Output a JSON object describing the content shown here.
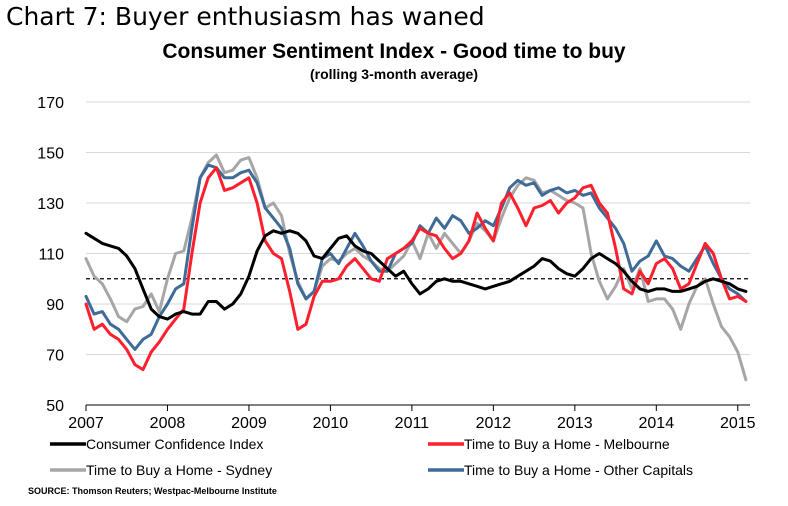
{
  "heading": "Chart 7: Buyer enthusiasm has waned",
  "source": "SOURCE: Thomson Reuters; Westpac-Melbourne Institute",
  "chart_data": {
    "type": "line",
    "title": "Consumer Sentiment Index - Good time to buy",
    "subtitle": "(rolling 3-month average)",
    "xlabel": "",
    "ylabel": "",
    "xlim": [
      2007.0,
      2015.15
    ],
    "ylim": [
      50,
      170
    ],
    "y_ticks": [
      50,
      70,
      90,
      110,
      130,
      150,
      170
    ],
    "x_ticks": [
      "2007",
      "2008",
      "2009",
      "2010",
      "2011",
      "2012",
      "2013",
      "2014",
      "2015"
    ],
    "reference_line": {
      "y": 100,
      "style": "dashed"
    },
    "grid": true,
    "legend_position": "bottom",
    "series": [
      {
        "name": "Consumer Confidence Index",
        "color": "#000000",
        "x": [
          2007.0,
          2007.1,
          2007.2,
          2007.3,
          2007.4,
          2007.5,
          2007.6,
          2007.7,
          2007.8,
          2007.9,
          2008.0,
          2008.1,
          2008.2,
          2008.3,
          2008.4,
          2008.5,
          2008.6,
          2008.7,
          2008.8,
          2008.9,
          2009.0,
          2009.1,
          2009.2,
          2009.3,
          2009.4,
          2009.5,
          2009.6,
          2009.7,
          2009.8,
          2009.9,
          2010.0,
          2010.1,
          2010.2,
          2010.3,
          2010.4,
          2010.5,
          2010.6,
          2010.7,
          2010.8,
          2010.9,
          2011.0,
          2011.1,
          2011.2,
          2011.3,
          2011.4,
          2011.5,
          2011.6,
          2011.7,
          2011.8,
          2011.9,
          2012.0,
          2012.1,
          2012.2,
          2012.3,
          2012.4,
          2012.5,
          2012.6,
          2012.7,
          2012.8,
          2012.9,
          2013.0,
          2013.1,
          2013.2,
          2013.3,
          2013.4,
          2013.5,
          2013.6,
          2013.7,
          2013.8,
          2013.9,
          2014.0,
          2014.1,
          2014.2,
          2014.3,
          2014.4,
          2014.5,
          2014.6,
          2014.7,
          2014.8,
          2014.9,
          2015.0,
          2015.1
        ],
        "y": [
          118,
          116,
          114,
          113,
          112,
          109,
          104,
          96,
          88,
          85,
          84,
          86,
          87,
          86,
          86,
          91,
          91,
          88,
          90,
          94,
          101,
          111,
          117,
          119,
          118,
          119,
          118,
          115,
          109,
          108,
          112,
          116,
          117,
          113,
          111,
          110,
          107,
          104,
          101,
          103,
          98,
          94,
          96,
          99,
          100,
          99,
          99,
          98,
          97,
          96,
          97,
          98,
          99,
          101,
          103,
          105,
          108,
          107,
          104,
          102,
          101,
          104,
          108,
          110,
          108,
          106,
          103,
          99,
          96,
          95,
          96,
          96,
          95,
          95,
          96,
          97,
          99,
          100,
          99,
          98,
          96,
          95
        ]
      },
      {
        "name": "Time to Buy a Home - Melbourne",
        "color": "#ff1f2d",
        "x": [
          2007.0,
          2007.1,
          2007.2,
          2007.3,
          2007.4,
          2007.5,
          2007.6,
          2007.7,
          2007.8,
          2007.9,
          2008.0,
          2008.1,
          2008.2,
          2008.3,
          2008.4,
          2008.5,
          2008.6,
          2008.7,
          2008.8,
          2008.9,
          2009.0,
          2009.1,
          2009.2,
          2009.3,
          2009.4,
          2009.5,
          2009.6,
          2009.7,
          2009.8,
          2009.9,
          2010.0,
          2010.1,
          2010.2,
          2010.3,
          2010.4,
          2010.5,
          2010.6,
          2010.7,
          2010.8,
          2010.9,
          2011.0,
          2011.1,
          2011.2,
          2011.3,
          2011.4,
          2011.5,
          2011.6,
          2011.7,
          2011.8,
          2011.9,
          2012.0,
          2012.1,
          2012.2,
          2012.3,
          2012.4,
          2012.5,
          2012.6,
          2012.7,
          2012.8,
          2012.9,
          2013.0,
          2013.1,
          2013.2,
          2013.3,
          2013.4,
          2013.5,
          2013.6,
          2013.7,
          2013.8,
          2013.9,
          2014.0,
          2014.1,
          2014.2,
          2014.3,
          2014.4,
          2014.5,
          2014.6,
          2014.7,
          2014.8,
          2014.9,
          2015.0,
          2015.1
        ],
        "y": [
          90,
          80,
          82,
          78,
          76,
          72,
          66,
          64,
          71,
          75,
          80,
          84,
          88,
          110,
          130,
          140,
          144,
          135,
          136,
          138,
          140,
          130,
          115,
          110,
          108,
          95,
          80,
          82,
          93,
          99,
          99,
          100,
          105,
          108,
          104,
          100,
          99,
          108,
          110,
          112,
          115,
          120,
          118,
          117,
          112,
          108,
          110,
          115,
          126,
          120,
          115,
          130,
          134,
          128,
          121,
          128,
          129,
          131,
          126,
          130,
          132,
          136,
          137,
          130,
          126,
          112,
          96,
          94,
          103,
          98,
          106,
          108,
          104,
          96,
          98,
          106,
          114,
          110,
          100,
          92,
          93,
          91
        ]
      },
      {
        "name": "Time to Buy a Home - Sydney",
        "color": "#a6a6a6",
        "x": [
          2007.0,
          2007.1,
          2007.2,
          2007.3,
          2007.4,
          2007.5,
          2007.6,
          2007.7,
          2007.8,
          2007.9,
          2008.0,
          2008.1,
          2008.2,
          2008.3,
          2008.4,
          2008.5,
          2008.6,
          2008.7,
          2008.8,
          2008.9,
          2009.0,
          2009.1,
          2009.2,
          2009.3,
          2009.4,
          2009.5,
          2009.6,
          2009.7,
          2009.8,
          2009.9,
          2010.0,
          2010.1,
          2010.2,
          2010.3,
          2010.4,
          2010.5,
          2010.6,
          2010.7,
          2010.8,
          2010.9,
          2011.0,
          2011.1,
          2011.2,
          2011.3,
          2011.4,
          2011.5,
          2011.6,
          2011.7,
          2011.8,
          2011.9,
          2012.0,
          2012.1,
          2012.2,
          2012.3,
          2012.4,
          2012.5,
          2012.6,
          2012.7,
          2012.8,
          2012.9,
          2013.0,
          2013.1,
          2013.2,
          2013.3,
          2013.4,
          2013.5,
          2013.6,
          2013.7,
          2013.8,
          2013.9,
          2014.0,
          2014.1,
          2014.2,
          2014.3,
          2014.4,
          2014.5,
          2014.6,
          2014.7,
          2014.8,
          2014.9,
          2015.0,
          2015.1
        ],
        "y": [
          108,
          101,
          98,
          92,
          85,
          83,
          88,
          89,
          94,
          87,
          100,
          110,
          111,
          124,
          140,
          146,
          149,
          142,
          143,
          147,
          148,
          140,
          128,
          130,
          125,
          110,
          99,
          92,
          95,
          105,
          108,
          107,
          110,
          112,
          109,
          107,
          104,
          103,
          106,
          109,
          115,
          108,
          118,
          112,
          118,
          114,
          110,
          115,
          122,
          119,
          115,
          124,
          132,
          137,
          140,
          139,
          134,
          135,
          133,
          131,
          130,
          128,
          110,
          99,
          92,
          97,
          104,
          96,
          104,
          91,
          92,
          92,
          88,
          80,
          90,
          97,
          100,
          90,
          81,
          77,
          71,
          60
        ]
      },
      {
        "name": "Time to Buy a Home - Other Capitals",
        "color": "#3e6b98",
        "x": [
          2007.0,
          2007.1,
          2007.2,
          2007.3,
          2007.4,
          2007.5,
          2007.6,
          2007.7,
          2007.8,
          2007.9,
          2008.0,
          2008.1,
          2008.2,
          2008.3,
          2008.4,
          2008.5,
          2008.6,
          2008.7,
          2008.8,
          2008.9,
          2009.0,
          2009.1,
          2009.2,
          2009.3,
          2009.4,
          2009.5,
          2009.6,
          2009.7,
          2009.8,
          2009.9,
          2010.0,
          2010.1,
          2010.2,
          2010.3,
          2010.4,
          2010.5,
          2010.6,
          2010.7,
          2010.8,
          2010.9,
          2011.0,
          2011.1,
          2011.2,
          2011.3,
          2011.4,
          2011.5,
          2011.6,
          2011.7,
          2011.8,
          2011.9,
          2012.0,
          2012.1,
          2012.2,
          2012.3,
          2012.4,
          2012.5,
          2012.6,
          2012.7,
          2012.8,
          2012.9,
          2013.0,
          2013.1,
          2013.2,
          2013.3,
          2013.4,
          2013.5,
          2013.6,
          2013.7,
          2013.8,
          2013.9,
          2014.0,
          2014.1,
          2014.2,
          2014.3,
          2014.4,
          2014.5,
          2014.6,
          2014.7,
          2014.8,
          2014.9,
          2015.0,
          2015.1
        ],
        "y": [
          93,
          86,
          87,
          82,
          80,
          76,
          72,
          76,
          78,
          85,
          90,
          96,
          98,
          120,
          140,
          145,
          144,
          140,
          140,
          142,
          143,
          138,
          128,
          124,
          120,
          112,
          98,
          92,
          95,
          108,
          110,
          106,
          112,
          118,
          113,
          107,
          103,
          103,
          110,
          112,
          114,
          121,
          118,
          124,
          120,
          125,
          123,
          118,
          120,
          123,
          121,
          128,
          136,
          139,
          137,
          138,
          133,
          135,
          136,
          134,
          135,
          133,
          134,
          128,
          124,
          120,
          114,
          103,
          107,
          109,
          115,
          109,
          108,
          105,
          103,
          108,
          113,
          106,
          100,
          96,
          94,
          91
        ]
      }
    ]
  }
}
